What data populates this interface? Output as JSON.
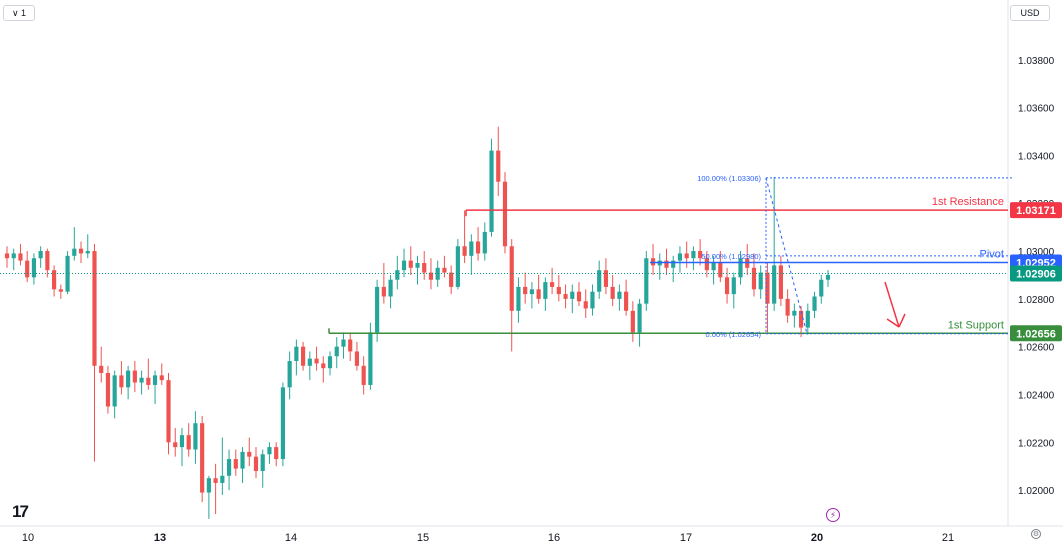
{
  "toolbar": {
    "interval": "∨  1",
    "currency": "USD"
  },
  "icons": {
    "logo": "tradingview-logo-icon",
    "logo_glyph": "17",
    "settings": "settings-icon",
    "flash": "flash-icon"
  },
  "chart_data": {
    "type": "candlestick",
    "ylim": [
      1.0185,
      1.0405
    ],
    "y_ticks": [
      "1.03800",
      "1.03600",
      "1.03400",
      "1.03200",
      "1.03000",
      "1.02800",
      "1.02600",
      "1.02400",
      "1.02200",
      "1.02000"
    ],
    "y_tick_values": [
      1.038,
      1.036,
      1.034,
      1.032,
      1.03,
      1.028,
      1.026,
      1.024,
      1.022,
      1.02
    ],
    "x_labels": [
      "10",
      "13",
      "14",
      "15",
      "16",
      "17",
      "20",
      "21"
    ],
    "x_label_bold": [
      "13",
      "20"
    ],
    "colors": {
      "up": "#26a69a",
      "down": "#ef5350",
      "resistance": "#f23645",
      "pivot": "#2962ff",
      "support": "#388e3c",
      "price": "#089981",
      "fib": "#2962ff",
      "arrow": "#f23645"
    },
    "candles": [
      [
        1.0299,
        1.0302,
        1.0293,
        1.0297
      ],
      [
        1.0297,
        1.0301,
        1.0292,
        1.0299
      ],
      [
        1.0299,
        1.0303,
        1.0294,
        1.0296
      ],
      [
        1.0296,
        1.03,
        1.0287,
        1.0289
      ],
      [
        1.0289,
        1.0299,
        1.0286,
        1.0297
      ],
      [
        1.0297,
        1.0302,
        1.0293,
        1.03
      ],
      [
        1.03,
        1.0301,
        1.0289,
        1.0292
      ],
      [
        1.0292,
        1.0294,
        1.0281,
        1.0284
      ],
      [
        1.0284,
        1.0286,
        1.028,
        1.0283
      ],
      [
        1.0283,
        1.03,
        1.0282,
        1.0298
      ],
      [
        1.0298,
        1.031,
        1.0296,
        1.0301
      ],
      [
        1.0301,
        1.0304,
        1.0295,
        1.0299
      ],
      [
        1.0299,
        1.0307,
        1.0297,
        1.03
      ],
      [
        1.03,
        1.0303,
        1.0212,
        1.0252
      ],
      [
        1.0252,
        1.026,
        1.0245,
        1.0249
      ],
      [
        1.0249,
        1.0252,
        1.0232,
        1.0235
      ],
      [
        1.0235,
        1.025,
        1.023,
        1.0248
      ],
      [
        1.0248,
        1.0254,
        1.024,
        1.0243
      ],
      [
        1.0243,
        1.0252,
        1.0238,
        1.025
      ],
      [
        1.025,
        1.0254,
        1.0241,
        1.0245
      ],
      [
        1.0245,
        1.025,
        1.024,
        1.0247
      ],
      [
        1.0247,
        1.0255,
        1.0242,
        1.0244
      ],
      [
        1.0244,
        1.025,
        1.0236,
        1.0248
      ],
      [
        1.0248,
        1.0253,
        1.0244,
        1.0246
      ],
      [
        1.0246,
        1.0249,
        1.0215,
        1.022
      ],
      [
        1.022,
        1.0226,
        1.0214,
        1.0218
      ],
      [
        1.0218,
        1.0226,
        1.021,
        1.0223
      ],
      [
        1.0223,
        1.0228,
        1.0214,
        1.0217
      ],
      [
        1.0217,
        1.0233,
        1.0211,
        1.0228
      ],
      [
        1.0228,
        1.0231,
        1.0195,
        1.0199
      ],
      [
        1.0199,
        1.0206,
        1.0188,
        1.0205
      ],
      [
        1.0205,
        1.0211,
        1.019,
        1.0203
      ],
      [
        1.0203,
        1.0222,
        1.0198,
        1.0206
      ],
      [
        1.0206,
        1.0217,
        1.02,
        1.0213
      ],
      [
        1.0213,
        1.0217,
        1.0206,
        1.0209
      ],
      [
        1.0209,
        1.0218,
        1.0203,
        1.0216
      ],
      [
        1.0216,
        1.0222,
        1.021,
        1.0214
      ],
      [
        1.0214,
        1.0218,
        1.0205,
        1.0208
      ],
      [
        1.0208,
        1.0217,
        1.0201,
        1.0215
      ],
      [
        1.0215,
        1.022,
        1.0211,
        1.0218
      ],
      [
        1.0218,
        1.022,
        1.021,
        1.0213
      ],
      [
        1.0213,
        1.0245,
        1.021,
        1.0243
      ],
      [
        1.0243,
        1.0258,
        1.0238,
        1.0254
      ],
      [
        1.0254,
        1.0263,
        1.0248,
        1.026
      ],
      [
        1.026,
        1.0262,
        1.025,
        1.0252
      ],
      [
        1.0252,
        1.0258,
        1.0246,
        1.0255
      ],
      [
        1.0255,
        1.026,
        1.025,
        1.0253
      ],
      [
        1.0253,
        1.0256,
        1.0245,
        1.0251
      ],
      [
        1.0251,
        1.0258,
        1.0248,
        1.0256
      ],
      [
        1.0256,
        1.0264,
        1.0251,
        1.026
      ],
      [
        1.026,
        1.0266,
        1.0255,
        1.0263
      ],
      [
        1.0263,
        1.0266,
        1.0254,
        1.0258
      ],
      [
        1.0258,
        1.0262,
        1.025,
        1.0252
      ],
      [
        1.0252,
        1.0256,
        1.024,
        1.0244
      ],
      [
        1.0244,
        1.027,
        1.0242,
        1.0266
      ],
      [
        1.0266,
        1.0288,
        1.0262,
        1.0285
      ],
      [
        1.0285,
        1.0295,
        1.0278,
        1.0281
      ],
      [
        1.0281,
        1.029,
        1.0276,
        1.0288
      ],
      [
        1.0288,
        1.0298,
        1.0284,
        1.0292
      ],
      [
        1.0292,
        1.0301,
        1.0289,
        1.0296
      ],
      [
        1.0296,
        1.0302,
        1.029,
        1.0293
      ],
      [
        1.0293,
        1.0298,
        1.0286,
        1.0295
      ],
      [
        1.0295,
        1.03,
        1.0288,
        1.0291
      ],
      [
        1.0291,
        1.0297,
        1.0284,
        1.0288
      ],
      [
        1.0288,
        1.0296,
        1.0285,
        1.0293
      ],
      [
        1.0293,
        1.0298,
        1.0289,
        1.0291
      ],
      [
        1.0291,
        1.0294,
        1.0282,
        1.0285
      ],
      [
        1.0285,
        1.0305,
        1.0284,
        1.0302
      ],
      [
        1.0302,
        1.0317,
        1.0295,
        1.0298
      ],
      [
        1.0298,
        1.0307,
        1.029,
        1.0304
      ],
      [
        1.0304,
        1.031,
        1.0296,
        1.0299
      ],
      [
        1.0299,
        1.0312,
        1.0296,
        1.0308
      ],
      [
        1.0308,
        1.0347,
        1.0306,
        1.0342
      ],
      [
        1.0342,
        1.0352,
        1.0323,
        1.0329
      ],
      [
        1.0329,
        1.0333,
        1.0299,
        1.0302
      ],
      [
        1.0302,
        1.0305,
        1.0258,
        1.0275
      ],
      [
        1.0275,
        1.0289,
        1.027,
        1.0285
      ],
      [
        1.0285,
        1.0291,
        1.0278,
        1.0282
      ],
      [
        1.0282,
        1.0287,
        1.0276,
        1.0284
      ],
      [
        1.0284,
        1.029,
        1.0278,
        1.028
      ],
      [
        1.028,
        1.0289,
        1.0275,
        1.0287
      ],
      [
        1.0287,
        1.0293,
        1.0282,
        1.0285
      ],
      [
        1.0285,
        1.029,
        1.0279,
        1.0282
      ],
      [
        1.0282,
        1.0286,
        1.0276,
        1.028
      ],
      [
        1.028,
        1.0286,
        1.0274,
        1.0283
      ],
      [
        1.0283,
        1.0287,
        1.0277,
        1.0279
      ],
      [
        1.0279,
        1.0284,
        1.0272,
        1.0276
      ],
      [
        1.0276,
        1.0286,
        1.0273,
        1.0283
      ],
      [
        1.0283,
        1.0296,
        1.028,
        1.0292
      ],
      [
        1.0292,
        1.0297,
        1.0282,
        1.0285
      ],
      [
        1.0285,
        1.029,
        1.0277,
        1.028
      ],
      [
        1.028,
        1.0286,
        1.0275,
        1.0283
      ],
      [
        1.0283,
        1.0288,
        1.0273,
        1.0275
      ],
      [
        1.0275,
        1.0279,
        1.0262,
        1.0266
      ],
      [
        1.0266,
        1.028,
        1.026,
        1.0278
      ],
      [
        1.0278,
        1.03,
        1.0275,
        1.0297
      ],
      [
        1.0297,
        1.0303,
        1.029,
        1.0294
      ],
      [
        1.0294,
        1.0299,
        1.0288,
        1.0296
      ],
      [
        1.0296,
        1.0301,
        1.029,
        1.0293
      ],
      [
        1.0293,
        1.0298,
        1.0287,
        1.0296
      ],
      [
        1.0296,
        1.0302,
        1.0291,
        1.0299
      ],
      [
        1.0299,
        1.0304,
        1.0293,
        1.0297
      ],
      [
        1.0297,
        1.0302,
        1.0292,
        1.03
      ],
      [
        1.03,
        1.0305,
        1.0294,
        1.0297
      ],
      [
        1.0297,
        1.03,
        1.0289,
        1.0292
      ],
      [
        1.0292,
        1.0298,
        1.0286,
        1.0295
      ],
      [
        1.0295,
        1.03,
        1.0287,
        1.0289
      ],
      [
        1.0289,
        1.0293,
        1.0278,
        1.0282
      ],
      [
        1.0282,
        1.0291,
        1.0276,
        1.0289
      ],
      [
        1.0289,
        1.03,
        1.0286,
        1.0297
      ],
      [
        1.0297,
        1.0303,
        1.029,
        1.0293
      ],
      [
        1.0293,
        1.0299,
        1.0281,
        1.0284
      ],
      [
        1.0284,
        1.0294,
        1.028,
        1.0291
      ],
      [
        1.0291,
        1.0295,
        1.0266,
        1.0278
      ],
      [
        1.0278,
        1.0331,
        1.0275,
        1.0294
      ],
      [
        1.0294,
        1.0298,
        1.0277,
        1.028
      ],
      [
        1.028,
        1.0284,
        1.027,
        1.0273
      ],
      [
        1.0273,
        1.0278,
        1.0268,
        1.0275
      ],
      [
        1.0275,
        1.0277,
        1.0264,
        1.0268
      ],
      [
        1.0268,
        1.0278,
        1.0265,
        1.0275
      ],
      [
        1.0275,
        1.0283,
        1.0272,
        1.0281
      ],
      [
        1.0281,
        1.029,
        1.0278,
        1.0288
      ],
      [
        1.0288,
        1.0292,
        1.0285,
        1.029
      ]
    ],
    "levels": [
      {
        "name": "resistance",
        "value": 1.03171,
        "label": "1st Resistance",
        "tag": "1.03171"
      },
      {
        "name": "pivot",
        "value": 1.02952,
        "label": "Pivot",
        "tag": "1.02952"
      },
      {
        "name": "support",
        "value": 1.02656,
        "label": "1st Support",
        "tag": "1.02656"
      }
    ],
    "last_price": {
      "value": 1.02906,
      "tag": "1.02906"
    },
    "fib": [
      {
        "value": 1.03306,
        "label": "100.00% (1.03306)"
      },
      {
        "value": 1.0298,
        "label": "50.00% (1.02980)"
      },
      {
        "value": 1.02654,
        "label": "0.00% (1.02654)"
      }
    ]
  }
}
